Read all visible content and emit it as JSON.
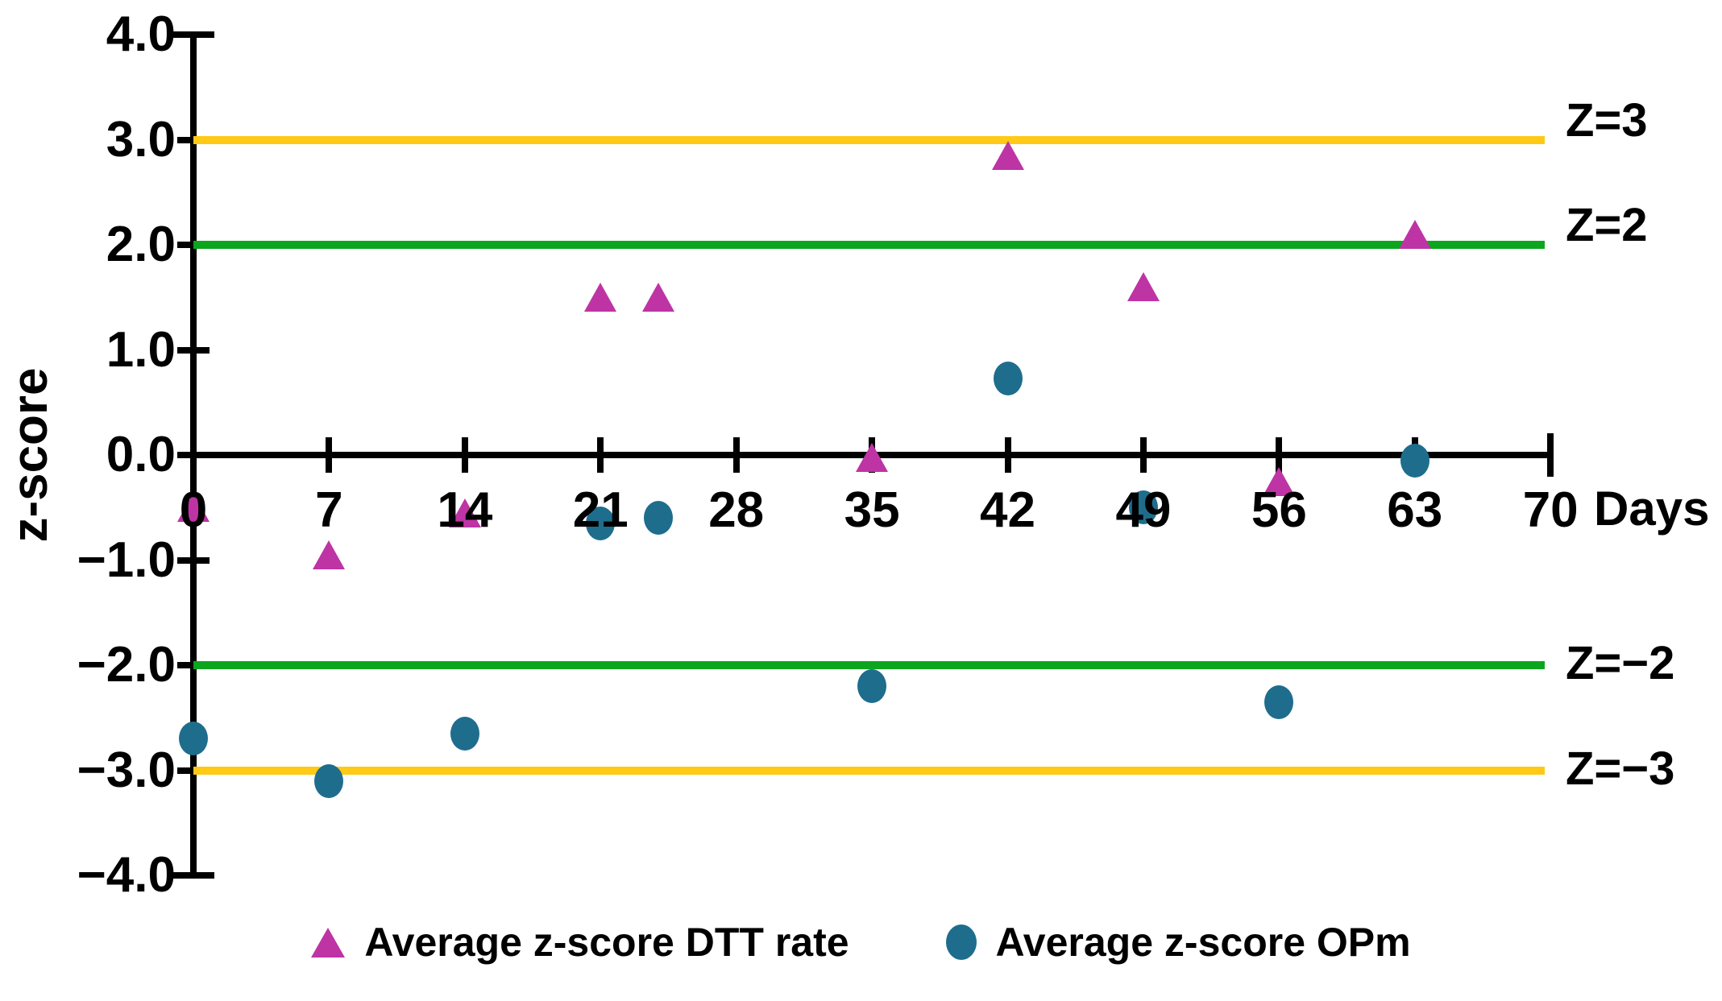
{
  "chart_data": {
    "type": "scatter",
    "title": "",
    "xlabel": "Days",
    "ylabel": "z-score",
    "xlim": [
      0,
      70
    ],
    "ylim": [
      -4,
      4
    ],
    "grid": false,
    "x_ticks": [
      0,
      7,
      14,
      21,
      28,
      35,
      42,
      49,
      56,
      63,
      70
    ],
    "x_tick_labels": [
      "0",
      "7",
      "14",
      "21",
      "28",
      "35",
      "42",
      "49",
      "56",
      "63",
      "70"
    ],
    "y_ticks": [
      4,
      3,
      2,
      1,
      0,
      -1,
      -2,
      -3,
      -4
    ],
    "y_tick_labels": [
      "4.0",
      "3.0",
      "2.0",
      "1.0",
      "0.0",
      "−1.0",
      "−2.0",
      "−3.0",
      "−4.0"
    ],
    "axis_color": "#000000",
    "series": [
      {
        "id": "dtt-rate",
        "name": "Average z-score DTT rate",
        "marker": "triangle",
        "color": "#be34a4",
        "points": [
          [
            0,
            -0.5
          ],
          [
            7,
            -0.95
          ],
          [
            14,
            -0.55
          ],
          [
            21,
            1.5
          ],
          [
            24,
            1.5
          ],
          [
            35,
            -0.02
          ],
          [
            42,
            2.85
          ],
          [
            49,
            1.6
          ],
          [
            56,
            -0.25
          ],
          [
            63,
            2.1
          ]
        ]
      },
      {
        "id": "opm",
        "name": "Average z-score OPm",
        "marker": "circle",
        "color": "#1e6d8d",
        "points": [
          [
            0,
            -2.7
          ],
          [
            7,
            -3.1
          ],
          [
            14,
            -2.65
          ],
          [
            21,
            -0.65
          ],
          [
            24,
            -0.6
          ],
          [
            35,
            -2.2
          ],
          [
            42,
            0.73
          ],
          [
            49,
            -0.5
          ],
          [
            56,
            -2.35
          ],
          [
            63,
            -0.05
          ]
        ]
      }
    ],
    "reference_lines": [
      {
        "label": "Z=3",
        "z": 3,
        "color": "#ffc916"
      },
      {
        "label": "Z=2",
        "z": 2,
        "color": "#0ca61e"
      },
      {
        "label": "Z=−2",
        "z": -2,
        "color": "#0ca61e"
      },
      {
        "label": "Z=−3",
        "z": -3,
        "color": "#ffc916"
      }
    ],
    "legend": {
      "position": "bottom",
      "entries": [
        "Average z-score DTT rate",
        "Average z-score OPm"
      ]
    }
  }
}
